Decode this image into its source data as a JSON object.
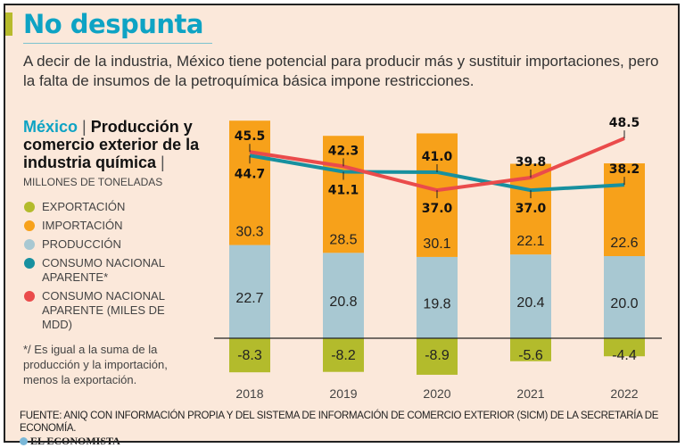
{
  "header": {
    "title": "No despunta",
    "subtitle": "A decir de la industria, México tiene potencial para producir más y sustituir importaciones, pero la falta de insumos de la petroquímica básica impone restricciones."
  },
  "chart_title": {
    "country": "México",
    "separator": "|",
    "title": "Producción y comercio exterior de la industria química",
    "separator2": "|",
    "units": "MILLONES DE TONELADAS"
  },
  "legend": [
    {
      "label": "EXPORTACIÓN",
      "color": "#b3bb2c"
    },
    {
      "label": "IMPORTACIÓN",
      "color": "#f7a11a"
    },
    {
      "label": "PRODUCCIÓN",
      "color": "#a8c8d2"
    },
    {
      "label": "CONSUMO NACIONAL APARENTE*",
      "color": "#17909f"
    },
    {
      "label": "CONSUMO NACIONAL APARENTE (MILES DE MDD)",
      "color": "#ea4b4b"
    }
  ],
  "note": "*/ Es igual a la suma de la producción y la importación, menos la exportación.",
  "footer": {
    "source": "FUENTE: ANIQ CON INFORMACIÓN PROPIA Y DEL SISTEMA DE INFORMACIÓN DE COMERCIO EXTERIOR (SICM) DE LA SECRETARÍA DE ECONOMÍA.",
    "logo": "EL ECONOMISTA"
  },
  "chart_data": {
    "type": "bar",
    "stacked": true,
    "categories": [
      "2018",
      "2019",
      "2020",
      "2021",
      "2022"
    ],
    "series": [
      {
        "name": "EXPORTACIÓN",
        "type": "bar",
        "values": [
          -8.3,
          -8.2,
          -8.9,
          -5.6,
          -4.4
        ],
        "labels": [
          "-8.3",
          "-8.2",
          "-8.9",
          "-5.6",
          "-4.4"
        ]
      },
      {
        "name": "PRODUCCIÓN",
        "type": "bar",
        "values": [
          22.7,
          20.8,
          19.8,
          20.4,
          20.0
        ],
        "labels": [
          "22.7",
          "20.8",
          "19.8",
          "20.4",
          "20.0"
        ]
      },
      {
        "name": "IMPORTACIÓN",
        "type": "bar",
        "values": [
          30.3,
          28.5,
          30.1,
          22.1,
          22.6
        ],
        "labels": [
          "30.3",
          "28.5",
          "30.1",
          "22.1",
          "22.6"
        ]
      },
      {
        "name": "CONSUMO NACIONAL APARENTE*",
        "type": "line",
        "values": [
          44.7,
          41.1,
          41.0,
          37.0,
          38.2
        ],
        "labels": [
          "44.7",
          "41.1",
          "41.0",
          "37.0",
          "38.2"
        ]
      },
      {
        "name": "CONSUMO NACIONAL APARENTE (MILES DE MDD)",
        "type": "line",
        "values": [
          45.5,
          42.3,
          37.0,
          39.8,
          48.5
        ],
        "labels": [
          "45.5",
          "42.3",
          "37.0",
          "39.8",
          "48.5"
        ]
      }
    ],
    "grid": false,
    "legend_position": "left"
  }
}
